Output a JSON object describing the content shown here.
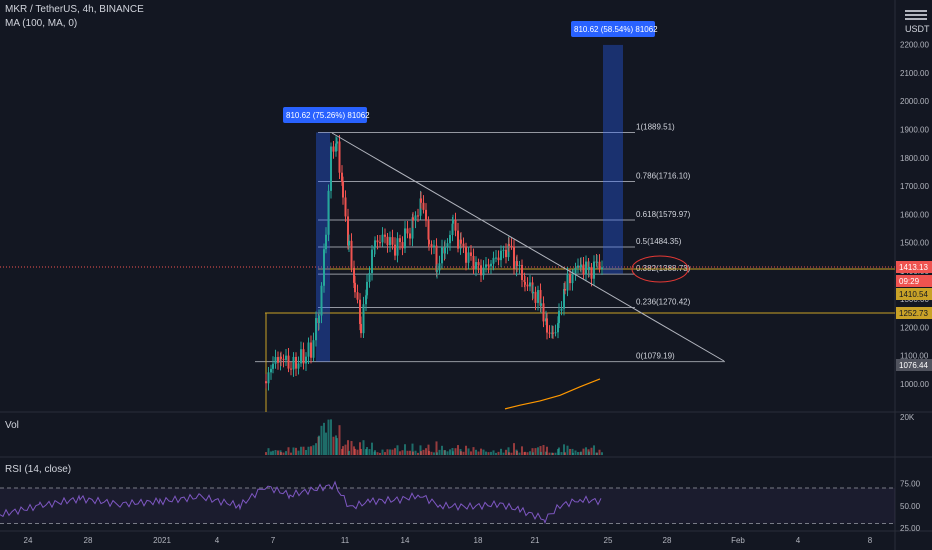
{
  "header": {
    "symbol_line": "MKR / TetherUS, 4h, BINANCE",
    "ma_line": "MA (100, MA, 0)",
    "currency": "USDT",
    "vol_label": "Vol",
    "rsi_label": "RSI (14, close)"
  },
  "colors": {
    "bg": "#131722",
    "up": "#26a69a",
    "down": "#ef5350",
    "fib_line": "#9598a1",
    "trend_line": "#b2b5be",
    "ma_line": "#ff9800",
    "rsi_line": "#7e57c2",
    "measure_box": "#2962ff",
    "highlight_circle": "#e53935",
    "price_tag_red": "#ef5350",
    "price_tag_gold": "#c9a227"
  },
  "chart_data": {
    "type": "candlestick",
    "x_ticks": [
      "24",
      "28",
      "2021",
      "4",
      "7",
      "11",
      "14",
      "18",
      "21",
      "25",
      "28",
      "Feb",
      "4",
      "8"
    ],
    "y_ticks": [
      "1000.00",
      "1100.00",
      "1200.00",
      "1300.00",
      "1400.00",
      "1500.00",
      "1600.00",
      "1700.00",
      "1800.00",
      "1900.00",
      "2000.00",
      "2100.00",
      "2200.00"
    ],
    "fib_levels": [
      {
        "label": "1(1889.51)",
        "price": 1889.51
      },
      {
        "label": "0.786(1716.10)",
        "price": 1716.1
      },
      {
        "label": "0.618(1579.97)",
        "price": 1579.97
      },
      {
        "label": "0.5(1484.35)",
        "price": 1484.35
      },
      {
        "label": "0.382(1388.73)",
        "price": 1388.73
      },
      {
        "label": "0.236(1270.42)",
        "price": 1270.42
      },
      {
        "label": "0(1079.19)",
        "price": 1079.19
      }
    ],
    "measure_labels": [
      "810.62 (75.26%) 81062",
      "810.62 (58.54%) 81062"
    ],
    "price_tags": [
      {
        "label": "1413.13",
        "price": 1413.13,
        "color": "red"
      },
      {
        "label": "09:29",
        "price": 1380,
        "color": "red"
      },
      {
        "label": "1410.54",
        "price": 1353,
        "color": "gold"
      },
      {
        "label": "1252.73",
        "price": 1252.73,
        "color": "gold"
      },
      {
        "label": "1076.44",
        "price": 1076.44,
        "color": "gray"
      }
    ],
    "volume_axis_label": "20K",
    "rsi_ticks": [
      "75.00",
      "50.00",
      "25.00"
    ],
    "rsi_bands": [
      70,
      30
    ],
    "price_path": [
      {
        "x": 265,
        "price": 1010
      },
      {
        "x": 272,
        "price": 1070
      },
      {
        "x": 280,
        "price": 1100
      },
      {
        "x": 290,
        "price": 1060
      },
      {
        "x": 300,
        "price": 1090
      },
      {
        "x": 310,
        "price": 1120
      },
      {
        "x": 318,
        "price": 1250
      },
      {
        "x": 325,
        "price": 1550
      },
      {
        "x": 330,
        "price": 1820
      },
      {
        "x": 336,
        "price": 1860
      },
      {
        "x": 342,
        "price": 1650
      },
      {
        "x": 348,
        "price": 1480
      },
      {
        "x": 354,
        "price": 1350
      },
      {
        "x": 360,
        "price": 1180
      },
      {
        "x": 366,
        "price": 1370
      },
      {
        "x": 374,
        "price": 1500
      },
      {
        "x": 384,
        "price": 1520
      },
      {
        "x": 394,
        "price": 1480
      },
      {
        "x": 404,
        "price": 1520
      },
      {
        "x": 412,
        "price": 1560
      },
      {
        "x": 420,
        "price": 1650
      },
      {
        "x": 428,
        "price": 1520
      },
      {
        "x": 436,
        "price": 1420
      },
      {
        "x": 444,
        "price": 1480
      },
      {
        "x": 452,
        "price": 1560
      },
      {
        "x": 460,
        "price": 1480
      },
      {
        "x": 470,
        "price": 1440
      },
      {
        "x": 480,
        "price": 1400
      },
      {
        "x": 490,
        "price": 1430
      },
      {
        "x": 500,
        "price": 1460
      },
      {
        "x": 508,
        "price": 1480
      },
      {
        "x": 516,
        "price": 1420
      },
      {
        "x": 524,
        "price": 1360
      },
      {
        "x": 532,
        "price": 1330
      },
      {
        "x": 540,
        "price": 1280
      },
      {
        "x": 546,
        "price": 1200
      },
      {
        "x": 552,
        "price": 1150
      },
      {
        "x": 558,
        "price": 1250
      },
      {
        "x": 564,
        "price": 1340
      },
      {
        "x": 572,
        "price": 1400
      },
      {
        "x": 580,
        "price": 1420
      },
      {
        "x": 588,
        "price": 1400
      },
      {
        "x": 596,
        "price": 1420
      },
      {
        "x": 602,
        "price": 1413
      }
    ],
    "ma_path": [
      {
        "x": 505,
        "price": 912
      },
      {
        "x": 520,
        "price": 925
      },
      {
        "x": 540,
        "price": 940
      },
      {
        "x": 560,
        "price": 960
      },
      {
        "x": 580,
        "price": 990
      },
      {
        "x": 600,
        "price": 1018
      }
    ],
    "rsi_path": [
      {
        "x": 0,
        "v": 40
      },
      {
        "x": 40,
        "v": 50
      },
      {
        "x": 80,
        "v": 58
      },
      {
        "x": 120,
        "v": 52
      },
      {
        "x": 160,
        "v": 55
      },
      {
        "x": 200,
        "v": 60
      },
      {
        "x": 240,
        "v": 50
      },
      {
        "x": 265,
        "v": 72
      },
      {
        "x": 290,
        "v": 62
      },
      {
        "x": 320,
        "v": 70
      },
      {
        "x": 335,
        "v": 73
      },
      {
        "x": 350,
        "v": 48
      },
      {
        "x": 370,
        "v": 55
      },
      {
        "x": 400,
        "v": 57
      },
      {
        "x": 420,
        "v": 62
      },
      {
        "x": 440,
        "v": 50
      },
      {
        "x": 470,
        "v": 49
      },
      {
        "x": 500,
        "v": 52
      },
      {
        "x": 520,
        "v": 45
      },
      {
        "x": 545,
        "v": 35
      },
      {
        "x": 560,
        "v": 50
      },
      {
        "x": 580,
        "v": 57
      },
      {
        "x": 602,
        "v": 55
      }
    ]
  }
}
